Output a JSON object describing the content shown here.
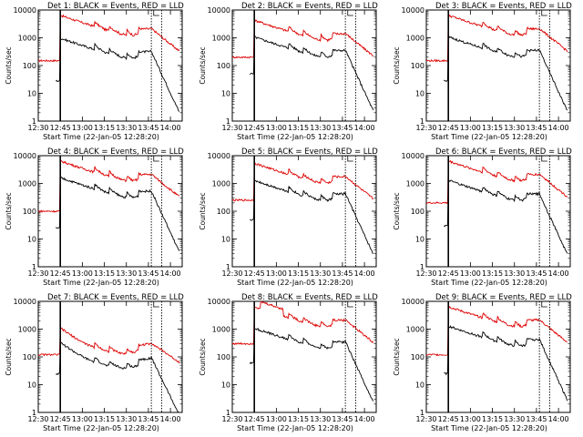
{
  "chart_data": {
    "type": "line",
    "title_template": "Det {n}: BLACK = Events, RED = LLD",
    "xlabel": "Start Time (22-Jan-05 12:28:20)",
    "ylabel": "Counts/sec",
    "x_tick_labels": [
      "12:30",
      "12:45",
      "13:00",
      "13:15",
      "13:30",
      "13:45",
      "14:00"
    ],
    "x_range": [
      "12:30",
      "14:08"
    ],
    "y_scale": "log",
    "y_range": [
      1,
      10000
    ],
    "y_tick_labels": [
      "1",
      "10",
      "100",
      "1000",
      "10000"
    ],
    "vlines": [
      "12:45",
      "13:47",
      "13:54"
    ],
    "legend_box": true,
    "series_colors": {
      "events": "#000000",
      "lld": "#dd0000"
    },
    "panels": [
      {
        "title": "Det 1: BLACK = Events, RED = LLD",
        "lld_start": 150,
        "events_start": 28,
        "peak_lld": 6000,
        "peak_ev": 900,
        "shape": "a"
      },
      {
        "title": "Det 2: BLACK = Events, RED = LLD",
        "lld_start": 200,
        "events_start": 50,
        "peak_lld": 4000,
        "peak_ev": 1000,
        "shape": "a"
      },
      {
        "title": "Det 3: BLACK = Events, RED = LLD",
        "lld_start": 150,
        "events_start": 28,
        "peak_lld": 6000,
        "peak_ev": 1000,
        "shape": "a"
      },
      {
        "title": "Det 4: BLACK = Events, RED = LLD",
        "lld_start": 100,
        "events_start": 25,
        "peak_lld": 6000,
        "peak_ev": 1500,
        "shape": "a"
      },
      {
        "title": "Det 5: BLACK = Events, RED = LLD",
        "lld_start": 250,
        "events_start": 50,
        "peak_lld": 5000,
        "peak_ev": 1200,
        "shape": "a"
      },
      {
        "title": "Det 6: BLACK = Events, RED = LLD",
        "lld_start": 200,
        "events_start": 30,
        "peak_lld": 6000,
        "peak_ev": 1200,
        "shape": "a"
      },
      {
        "title": "Det 7: BLACK = Events, RED = LLD",
        "lld_start": 120,
        "events_start": 25,
        "peak_lld": 1000,
        "peak_ev": 300,
        "shape": "b"
      },
      {
        "title": "Det 8: BLACK = Events, RED = LLD",
        "lld_start": 300,
        "events_start": 60,
        "peak_lld": 6000,
        "peak_ev": 1000,
        "shape": "c"
      },
      {
        "title": "Det 9: BLACK = Events, RED = LLD",
        "lld_start": 120,
        "events_start": 25,
        "peak_lld": 6000,
        "peak_ev": 1200,
        "shape": "a"
      }
    ]
  }
}
